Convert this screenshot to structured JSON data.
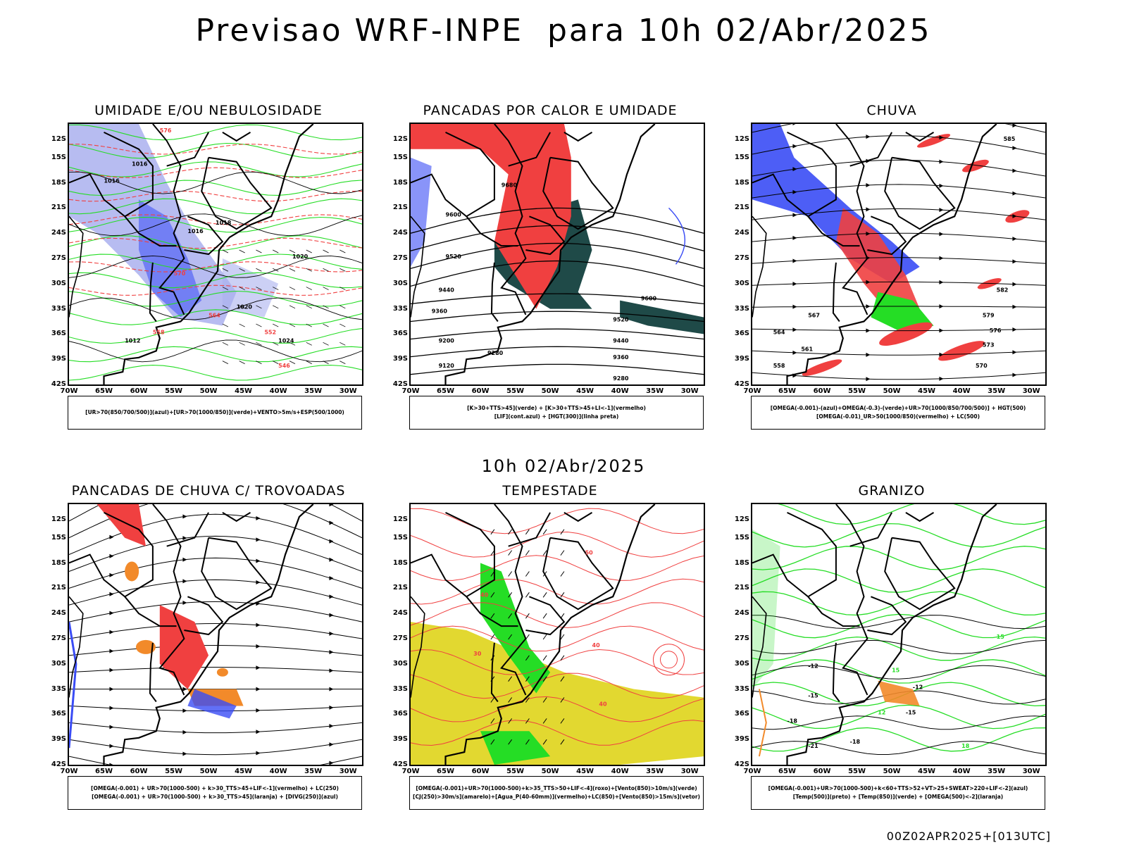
{
  "title": "Previsao WRF-INPE  para 10h 02/Abr/2025",
  "middle_date": "10h 02/Abr/2025",
  "footer": "00Z02APR2025+[013UTC]",
  "lat_labels": [
    "12S",
    "15S",
    "18S",
    "21S",
    "24S",
    "27S",
    "30S",
    "33S",
    "36S",
    "39S",
    "42S"
  ],
  "lon_labels": [
    "70W",
    "65W",
    "60W",
    "55W",
    "50W",
    "45W",
    "40W",
    "35W",
    "30W"
  ],
  "colors": {
    "blue": "#3a4cf5",
    "lightblue": "#aab0ef",
    "green": "#25dd25",
    "red": "#f04040",
    "orange": "#f28a2a",
    "yellow": "#e2d830",
    "darkteal": "#1f4a48"
  },
  "panels": [
    {
      "title": "UMIDADE E/OU NEBULOSIDADE",
      "legend": [
        "[UR>70(850/700/500)](azul)+[UR>70(1000/850)](verde)+VENTO>5m/s+ESP(500/1000)"
      ],
      "contour_labels": [
        "1016",
        "1016",
        "1016",
        "1018",
        "1020",
        "1024",
        "1012",
        "1020",
        "576",
        "570",
        "564",
        "558",
        "552",
        "546"
      ]
    },
    {
      "title": "PANCADAS POR CALOR E UMIDADE",
      "legend": [
        "[K>30+TTS>45](verde) + [K>30+TTS>45+LI<-1](vermelho)",
        "[LIF](cont.azul) + [HGT(300)](linha preta)"
      ],
      "contour_labels": [
        "9680",
        "9600",
        "9520",
        "9440",
        "9360",
        "9280",
        "9200",
        "9120",
        "9600",
        "9520",
        "9440",
        "9360",
        "9280"
      ]
    },
    {
      "title": "CHUVA",
      "legend": [
        "[OMEGA(-0.001)-(azul)+OMEGA(-0.3)-(verde)+UR>70(1000/850/700/500)] + HGT(500)",
        "[OMEGA(-0.01)_UR>50(1000/850)(vermelho) + LC(500)"
      ],
      "contour_labels": [
        "585",
        "582",
        "579",
        "576",
        "573",
        "570",
        "567",
        "564",
        "561",
        "558"
      ]
    },
    {
      "title": "PANCADAS DE CHUVA C/ TROVOADAS",
      "legend": [
        "[OMEGA(-0.001) + UR>70(1000-500) + k>30_TTS>45+LIF<-1](vermelho) + LC(250)",
        "[OMEGA(-0.001) + UR>70(1000-500) + k>30_TTS>45](laranja) + [DIVG(250)](azul)"
      ],
      "contour_labels": []
    },
    {
      "title": "TEMPESTADE",
      "legend": [
        "[OMEGA(-0.001)+UR>70(1000-500)+k>35_TTS>50+LIF<-4](roxo)+[Vento(850)>10m/s](verde)",
        "[CJ(250)>30m/s](amarelo)+[Agua_P(40-60mm)](vermelho)+LC(850)+[Vento(850)>15m/s](vetor)"
      ],
      "contour_labels": [
        "40",
        "50",
        "40",
        "40",
        "30"
      ]
    },
    {
      "title": "GRANIZO",
      "legend": [
        "[OMEGA(-0.001)+UR>70(1000-500)+k<60+TTS>52+VT>25+SWEAT>220+LIF<-2](azul)",
        "[Temp(500)](preto) + [Temp(850)](verde) + [OMEGA(500)<-2](laranja)"
      ],
      "contour_labels": [
        "-12",
        "-15",
        "-18",
        "-12",
        "-15",
        "-18",
        "-21",
        "15",
        "12",
        "15",
        "18"
      ]
    }
  ]
}
